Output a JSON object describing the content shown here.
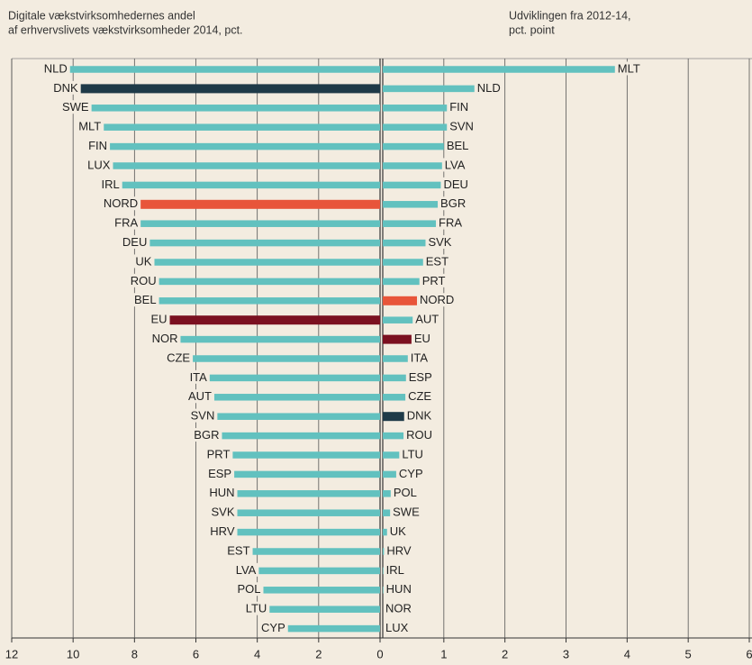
{
  "chart_data": [
    {
      "type": "barh",
      "title": [
        "Digitale vækstvirksomhedernes andel",
        "af erhvervslivets vækstvirksomheder 2014, pct."
      ],
      "categories": [
        "NLD",
        "DNK",
        "SWE",
        "MLT",
        "FIN",
        "LUX",
        "IRL",
        "NORD",
        "FRA",
        "DEU",
        "UK",
        "ROU",
        "BEL",
        "EU",
        "NOR",
        "CZE",
        "ITA",
        "AUT",
        "SVN",
        "BGR",
        "PRT",
        "ESP",
        "HUN",
        "SVK",
        "HRV",
        "EST",
        "LVA",
        "POL",
        "LTU",
        "CYP"
      ],
      "values": [
        10.1,
        9.75,
        9.4,
        9.0,
        8.8,
        8.7,
        8.4,
        7.8,
        7.8,
        7.5,
        7.35,
        7.2,
        7.2,
        6.85,
        6.5,
        6.1,
        5.55,
        5.4,
        5.3,
        5.15,
        4.8,
        4.75,
        4.65,
        4.65,
        4.65,
        4.15,
        3.95,
        3.8,
        3.6,
        3.0
      ],
      "colors": [
        "#62c1bf",
        "#1f3a48",
        "#62c1bf",
        "#62c1bf",
        "#62c1bf",
        "#62c1bf",
        "#62c1bf",
        "#e8553a",
        "#62c1bf",
        "#62c1bf",
        "#62c1bf",
        "#62c1bf",
        "#62c1bf",
        "#7b1020",
        "#62c1bf",
        "#62c1bf",
        "#62c1bf",
        "#62c1bf",
        "#62c1bf",
        "#62c1bf",
        "#62c1bf",
        "#62c1bf",
        "#62c1bf",
        "#62c1bf",
        "#62c1bf",
        "#62c1bf",
        "#62c1bf",
        "#62c1bf",
        "#62c1bf",
        "#62c1bf"
      ],
      "xlim": [
        12,
        0
      ],
      "xticks": [
        12,
        10,
        8,
        6,
        4,
        2,
        0
      ],
      "grid": true
    },
    {
      "type": "barh",
      "title": [
        "Udviklingen fra 2012-14,",
        "pct. point"
      ],
      "categories": [
        "MLT",
        "NLD",
        "FIN",
        "SVN",
        "BEL",
        "LVA",
        "DEU",
        "BGR",
        "FRA",
        "SVK",
        "EST",
        "PRT",
        "NORD",
        "AUT",
        "EU",
        "ITA",
        "ESP",
        "CZE",
        "DNK",
        "ROU",
        "LTU",
        "CYP",
        "POL",
        "SWE",
        "UK",
        "HRV",
        "IRL",
        "HUN",
        "NOR",
        "LUX"
      ],
      "values": [
        3.8,
        1.5,
        1.05,
        1.05,
        1.0,
        0.97,
        0.95,
        0.9,
        0.87,
        0.7,
        0.66,
        0.6,
        0.56,
        0.49,
        0.47,
        0.41,
        0.38,
        0.37,
        0.35,
        0.34,
        0.27,
        0.22,
        0.13,
        0.12,
        0.07,
        0.02,
        0.01,
        0.01,
        0,
        0
      ],
      "colors": [
        "#62c1bf",
        "#62c1bf",
        "#62c1bf",
        "#62c1bf",
        "#62c1bf",
        "#62c1bf",
        "#62c1bf",
        "#62c1bf",
        "#62c1bf",
        "#62c1bf",
        "#62c1bf",
        "#62c1bf",
        "#e8553a",
        "#62c1bf",
        "#7b1020",
        "#62c1bf",
        "#62c1bf",
        "#62c1bf",
        "#1f3a48",
        "#62c1bf",
        "#62c1bf",
        "#62c1bf",
        "#62c1bf",
        "#62c1bf",
        "#62c1bf",
        "#62c1bf",
        "#62c1bf",
        "#62c1bf",
        "#62c1bf",
        "#62c1bf"
      ],
      "xlim": [
        0,
        6
      ],
      "xticks": [
        1,
        2,
        3,
        4,
        5,
        6
      ],
      "grid": true
    }
  ]
}
